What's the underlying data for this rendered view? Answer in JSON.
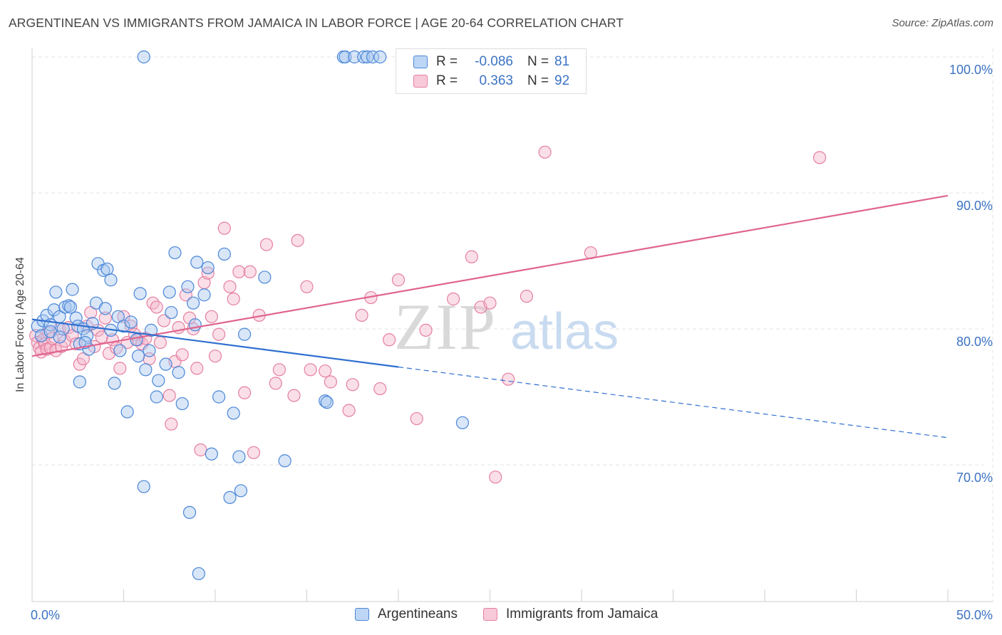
{
  "title": "ARGENTINEAN VS IMMIGRANTS FROM JAMAICA IN LABOR FORCE | AGE 20-64 CORRELATION CHART",
  "source": "Source: ZipAtlas.com",
  "watermark": {
    "zip": "ZIP",
    "atlas": "atlas"
  },
  "legend_top": {
    "rows": [
      {
        "r_label": "R =",
        "r_value": "-0.086",
        "n_label": "N =",
        "n_value": "81"
      },
      {
        "r_label": "R =",
        "r_value": "0.363",
        "n_label": "N =",
        "n_value": "92"
      }
    ]
  },
  "legend_bottom": {
    "items": [
      "Argentineans",
      "Immigrants from Jamaica"
    ]
  },
  "colors": {
    "blue_fill": "#a8c8f0",
    "blue_stroke": "#4a86d8",
    "blue_line": "#2f6fd0",
    "pink_fill": "#f5b8cc",
    "pink_stroke": "#e57fa0",
    "pink_line": "#e0648e",
    "axis_label": "#3b73c4",
    "grid": "#e3e3e3"
  },
  "chart_data": {
    "type": "scatter",
    "title": "ARGENTINEAN VS IMMIGRANTS FROM JAMAICA IN LABOR FORCE | AGE 20-64 CORRELATION CHART",
    "xlabel": "",
    "ylabel": "In Labor Force | Age 20-64",
    "xlim": [
      0,
      50
    ],
    "ylim": [
      60,
      100
    ],
    "x_tick_labels": [
      "0.0%",
      "50.0%"
    ],
    "y_ticks": [
      100,
      90,
      80,
      70
    ],
    "y_tick_labels": [
      "100.0%",
      "90.0%",
      "80.0%",
      "70.0%"
    ],
    "grid": true,
    "legend": "top-center",
    "series": [
      {
        "name": "Argentineans",
        "r": -0.086,
        "n": 81,
        "trend": {
          "x0": 0,
          "y0": 80.7,
          "x1": 20,
          "y1": 77.2,
          "dash_to_x": 50,
          "dash_to_y": 72.0
        },
        "points": [
          [
            0.3,
            80.2
          ],
          [
            0.5,
            79.5
          ],
          [
            0.6,
            80.6
          ],
          [
            0.8,
            81.0
          ],
          [
            1.0,
            80.3
          ],
          [
            1.0,
            79.8
          ],
          [
            1.2,
            81.4
          ],
          [
            1.3,
            82.7
          ],
          [
            1.5,
            80.9
          ],
          [
            1.7,
            80.0
          ],
          [
            1.8,
            81.6
          ],
          [
            2.0,
            81.7
          ],
          [
            2.1,
            81.6
          ],
          [
            2.2,
            82.9
          ],
          [
            2.4,
            80.8
          ],
          [
            2.5,
            80.2
          ],
          [
            2.6,
            78.9
          ],
          [
            2.6,
            76.1
          ],
          [
            2.8,
            80.0
          ],
          [
            3.0,
            79.5
          ],
          [
            3.1,
            78.5
          ],
          [
            3.3,
            80.4
          ],
          [
            3.5,
            81.9
          ],
          [
            3.6,
            84.8
          ],
          [
            3.9,
            84.3
          ],
          [
            4.0,
            81.5
          ],
          [
            4.1,
            84.4
          ],
          [
            4.3,
            83.6
          ],
          [
            4.5,
            76.0
          ],
          [
            4.7,
            80.9
          ],
          [
            4.8,
            78.4
          ],
          [
            5.0,
            80.2
          ],
          [
            5.2,
            73.9
          ],
          [
            5.4,
            80.5
          ],
          [
            5.7,
            79.2
          ],
          [
            5.8,
            78.0
          ],
          [
            5.9,
            82.6
          ],
          [
            6.1,
            68.4
          ],
          [
            6.2,
            77.0
          ],
          [
            6.4,
            78.4
          ],
          [
            6.5,
            79.9
          ],
          [
            6.8,
            75.0
          ],
          [
            6.9,
            76.2
          ],
          [
            7.3,
            77.4
          ],
          [
            7.5,
            82.7
          ],
          [
            7.6,
            81.2
          ],
          [
            7.8,
            85.6
          ],
          [
            8.0,
            76.8
          ],
          [
            8.2,
            74.5
          ],
          [
            8.5,
            83.1
          ],
          [
            8.6,
            66.5
          ],
          [
            8.8,
            81.9
          ],
          [
            8.9,
            80.3
          ],
          [
            9.0,
            84.9
          ],
          [
            9.1,
            62.0
          ],
          [
            9.4,
            82.5
          ],
          [
            9.6,
            84.5
          ],
          [
            9.8,
            70.8
          ],
          [
            10.2,
            75.0
          ],
          [
            10.5,
            85.5
          ],
          [
            10.8,
            67.6
          ],
          [
            11.0,
            73.8
          ],
          [
            11.3,
            70.6
          ],
          [
            11.4,
            68.1
          ],
          [
            11.6,
            79.6
          ],
          [
            12.7,
            83.8
          ],
          [
            13.8,
            70.3
          ],
          [
            16.0,
            74.7
          ],
          [
            16.1,
            74.6
          ],
          [
            17.0,
            100
          ],
          [
            17.1,
            100
          ],
          [
            17.6,
            100
          ],
          [
            18.1,
            100
          ],
          [
            18.3,
            100
          ],
          [
            18.6,
            100
          ],
          [
            19.0,
            100
          ],
          [
            6.1,
            100
          ],
          [
            23.5,
            73.1
          ],
          [
            1.5,
            79.4
          ],
          [
            2.9,
            79.0
          ],
          [
            4.3,
            79.9
          ]
        ]
      },
      {
        "name": "Immigrants from Jamaica",
        "r": 0.363,
        "n": 92,
        "trend": {
          "x0": 0,
          "y0": 78.0,
          "x1": 50,
          "y1": 89.8
        },
        "points": [
          [
            0.2,
            79.5
          ],
          [
            0.3,
            79.0
          ],
          [
            0.4,
            78.6
          ],
          [
            0.5,
            78.3
          ],
          [
            0.6,
            79.2
          ],
          [
            0.7,
            78.9
          ],
          [
            0.8,
            78.5
          ],
          [
            0.9,
            79.7
          ],
          [
            1.0,
            78.6
          ],
          [
            1.1,
            79.3
          ],
          [
            1.3,
            78.4
          ],
          [
            1.5,
            80.0
          ],
          [
            1.6,
            78.7
          ],
          [
            1.8,
            79.1
          ],
          [
            2.0,
            80.1
          ],
          [
            2.2,
            79.5
          ],
          [
            2.4,
            78.9
          ],
          [
            2.6,
            77.4
          ],
          [
            2.8,
            77.8
          ],
          [
            3.0,
            80.2
          ],
          [
            3.2,
            81.2
          ],
          [
            3.4,
            78.7
          ],
          [
            3.6,
            79.9
          ],
          [
            3.8,
            79.4
          ],
          [
            4.0,
            80.8
          ],
          [
            4.2,
            78.2
          ],
          [
            4.4,
            79.2
          ],
          [
            4.6,
            78.6
          ],
          [
            4.8,
            77.1
          ],
          [
            5.0,
            80.9
          ],
          [
            5.2,
            79.0
          ],
          [
            5.4,
            80.2
          ],
          [
            5.6,
            79.6
          ],
          [
            5.8,
            79.2
          ],
          [
            6.0,
            78.9
          ],
          [
            6.2,
            79.3
          ],
          [
            6.4,
            77.8
          ],
          [
            6.6,
            81.9
          ],
          [
            6.8,
            81.6
          ],
          [
            7.0,
            79.0
          ],
          [
            7.2,
            80.6
          ],
          [
            7.5,
            75.1
          ],
          [
            7.6,
            73.0
          ],
          [
            7.8,
            77.6
          ],
          [
            8.0,
            80.1
          ],
          [
            8.2,
            78.1
          ],
          [
            8.4,
            82.5
          ],
          [
            8.6,
            80.8
          ],
          [
            8.8,
            80.0
          ],
          [
            9.0,
            77.1
          ],
          [
            9.2,
            71.1
          ],
          [
            9.4,
            83.4
          ],
          [
            9.6,
            84.1
          ],
          [
            9.8,
            80.9
          ],
          [
            10.0,
            78.0
          ],
          [
            10.2,
            79.6
          ],
          [
            10.5,
            87.4
          ],
          [
            10.8,
            83.1
          ],
          [
            11.0,
            82.2
          ],
          [
            11.3,
            84.2
          ],
          [
            11.6,
            75.3
          ],
          [
            11.9,
            84.2
          ],
          [
            12.1,
            70.9
          ],
          [
            12.4,
            81.0
          ],
          [
            12.8,
            86.2
          ],
          [
            13.3,
            76.0
          ],
          [
            13.5,
            77.0
          ],
          [
            14.3,
            75.1
          ],
          [
            14.5,
            86.5
          ],
          [
            15.0,
            83.1
          ],
          [
            15.2,
            77.0
          ],
          [
            16.0,
            76.9
          ],
          [
            16.3,
            76.1
          ],
          [
            17.3,
            74.0
          ],
          [
            17.5,
            75.9
          ],
          [
            18.0,
            81.0
          ],
          [
            18.5,
            82.3
          ],
          [
            19.0,
            75.6
          ],
          [
            19.5,
            79.2
          ],
          [
            20.0,
            83.6
          ],
          [
            21.0,
            73.4
          ],
          [
            21.5,
            79.9
          ],
          [
            23.0,
            82.2
          ],
          [
            24.0,
            85.3
          ],
          [
            24.5,
            81.6
          ],
          [
            25.0,
            81.9
          ],
          [
            25.3,
            69.1
          ],
          [
            26.0,
            76.3
          ],
          [
            27.0,
            82.4
          ],
          [
            28.0,
            93.0
          ],
          [
            30.5,
            85.6
          ],
          [
            43.0,
            92.6
          ]
        ]
      }
    ]
  }
}
